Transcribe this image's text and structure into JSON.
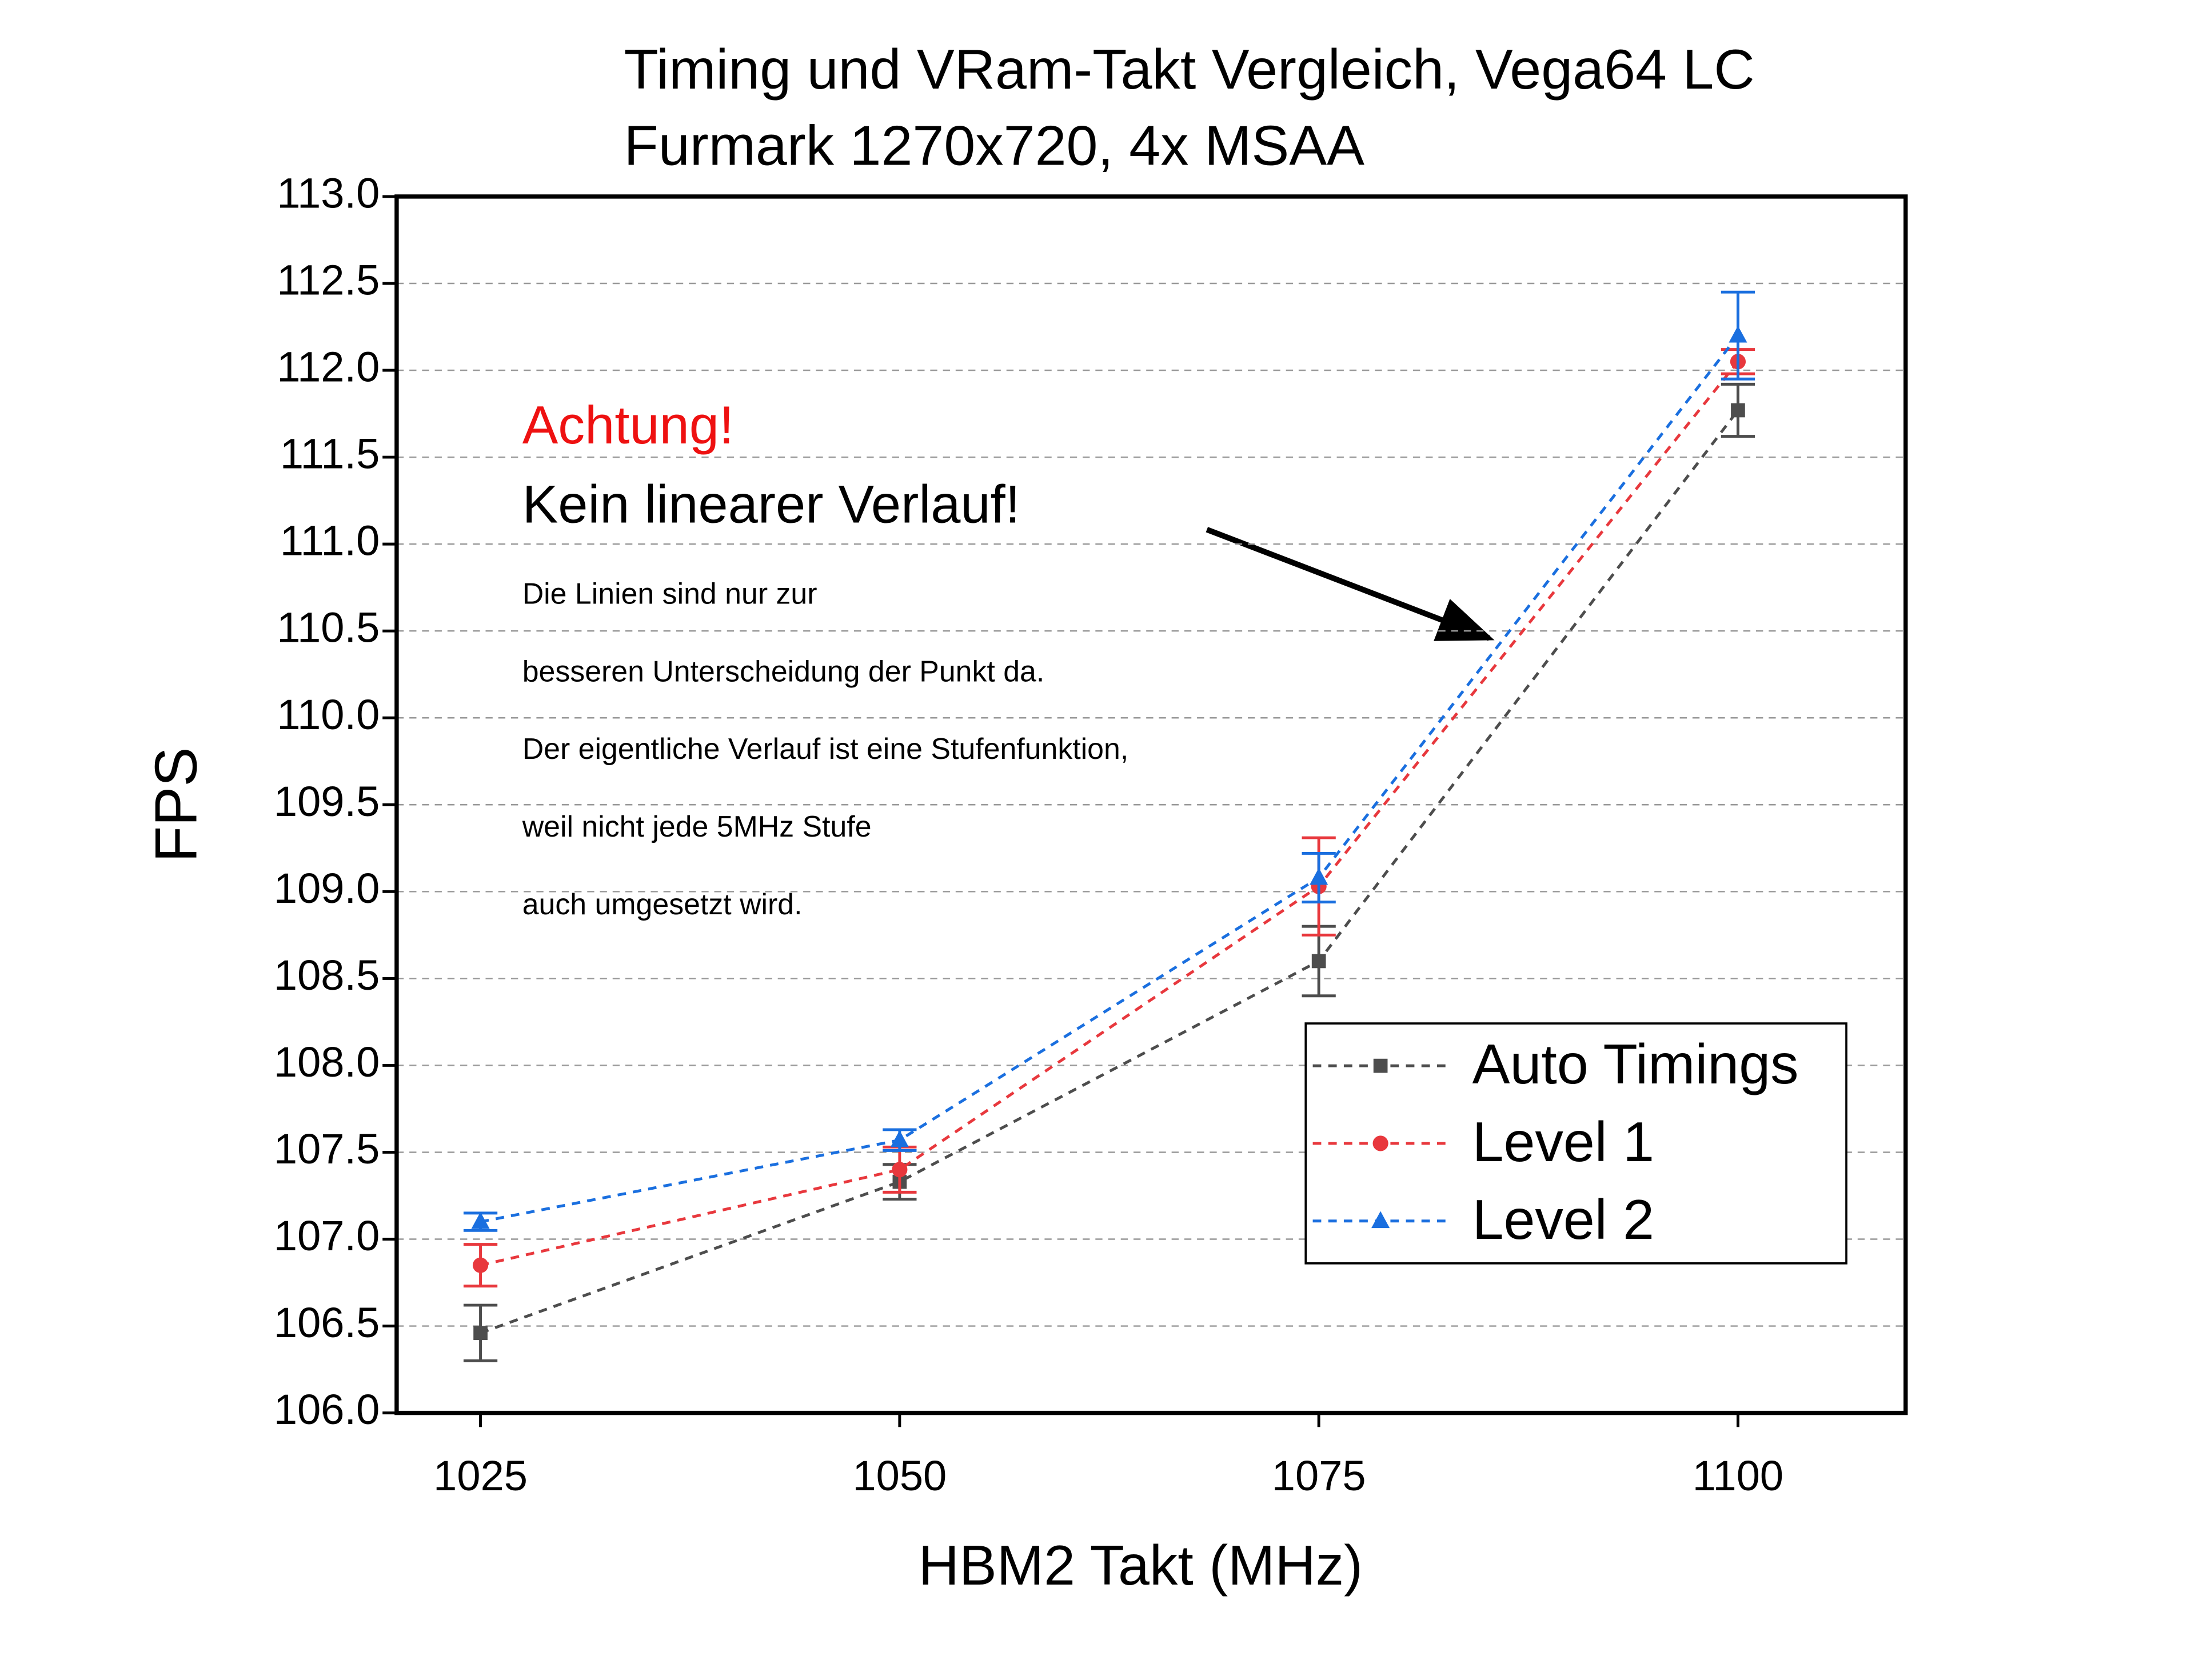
{
  "chart_data": {
    "type": "line",
    "title": [
      "Timing und VRam-Takt Vergleich, Vega64 LC",
      "Furmark 1270x720, 4x MSAA"
    ],
    "x_label": "HBM2 Takt (MHz)",
    "y_label": "FPS",
    "annotations": [
      "Achtung!",
      "Kein linearer Verlauf!",
      "Die Linien sind nur zur",
      "besseren Unterscheidung der Punkt da.",
      "Der eigentliche Verlauf ist eine Stufenfunktion,",
      "weil nicht jede 5MHz Stufe",
      "auch umgesetzt wird."
    ],
    "x": [
      1025,
      1050,
      1075,
      1100
    ],
    "series": [
      {
        "name": "Auto Timings",
        "color": "#4d4d4d",
        "marker": "square",
        "values": [
          106.46,
          107.33,
          108.6,
          111.77
        ],
        "errors": [
          0.16,
          0.1,
          0.2,
          0.15
        ]
      },
      {
        "name": "Level 1",
        "color": "#e8383d",
        "marker": "circle",
        "values": [
          106.85,
          107.4,
          109.03,
          112.05
        ],
        "errors": [
          0.12,
          0.13,
          0.28,
          0.07
        ]
      },
      {
        "name": "Level 2",
        "color": "#1a6fdf",
        "marker": "triangle",
        "values": [
          107.1,
          107.57,
          109.08,
          112.2
        ],
        "errors": [
          0.05,
          0.06,
          0.14,
          0.25
        ]
      }
    ],
    "xlim": [
      1020,
      1110
    ],
    "xticks": [
      1025,
      1050,
      1075,
      1100
    ],
    "ylim": [
      106,
      113
    ],
    "yticks": [
      {
        "value": 106,
        "label": "106.0"
      },
      106.5,
      {
        "value": 107,
        "label": "107.0"
      },
      107.5,
      {
        "value": 108,
        "label": "108.0"
      },
      108.5,
      {
        "value": 109,
        "label": "109.0"
      },
      109.5,
      {
        "value": 110,
        "label": "110.0"
      },
      110.5,
      {
        "value": 111,
        "label": "111.0"
      },
      111.5,
      {
        "value": 112,
        "label": "112.0"
      },
      112.5,
      {
        "value": 113,
        "label": "113.0"
      }
    ],
    "grid": true,
    "line_style": "dashed",
    "legend_position": "lower-right"
  }
}
